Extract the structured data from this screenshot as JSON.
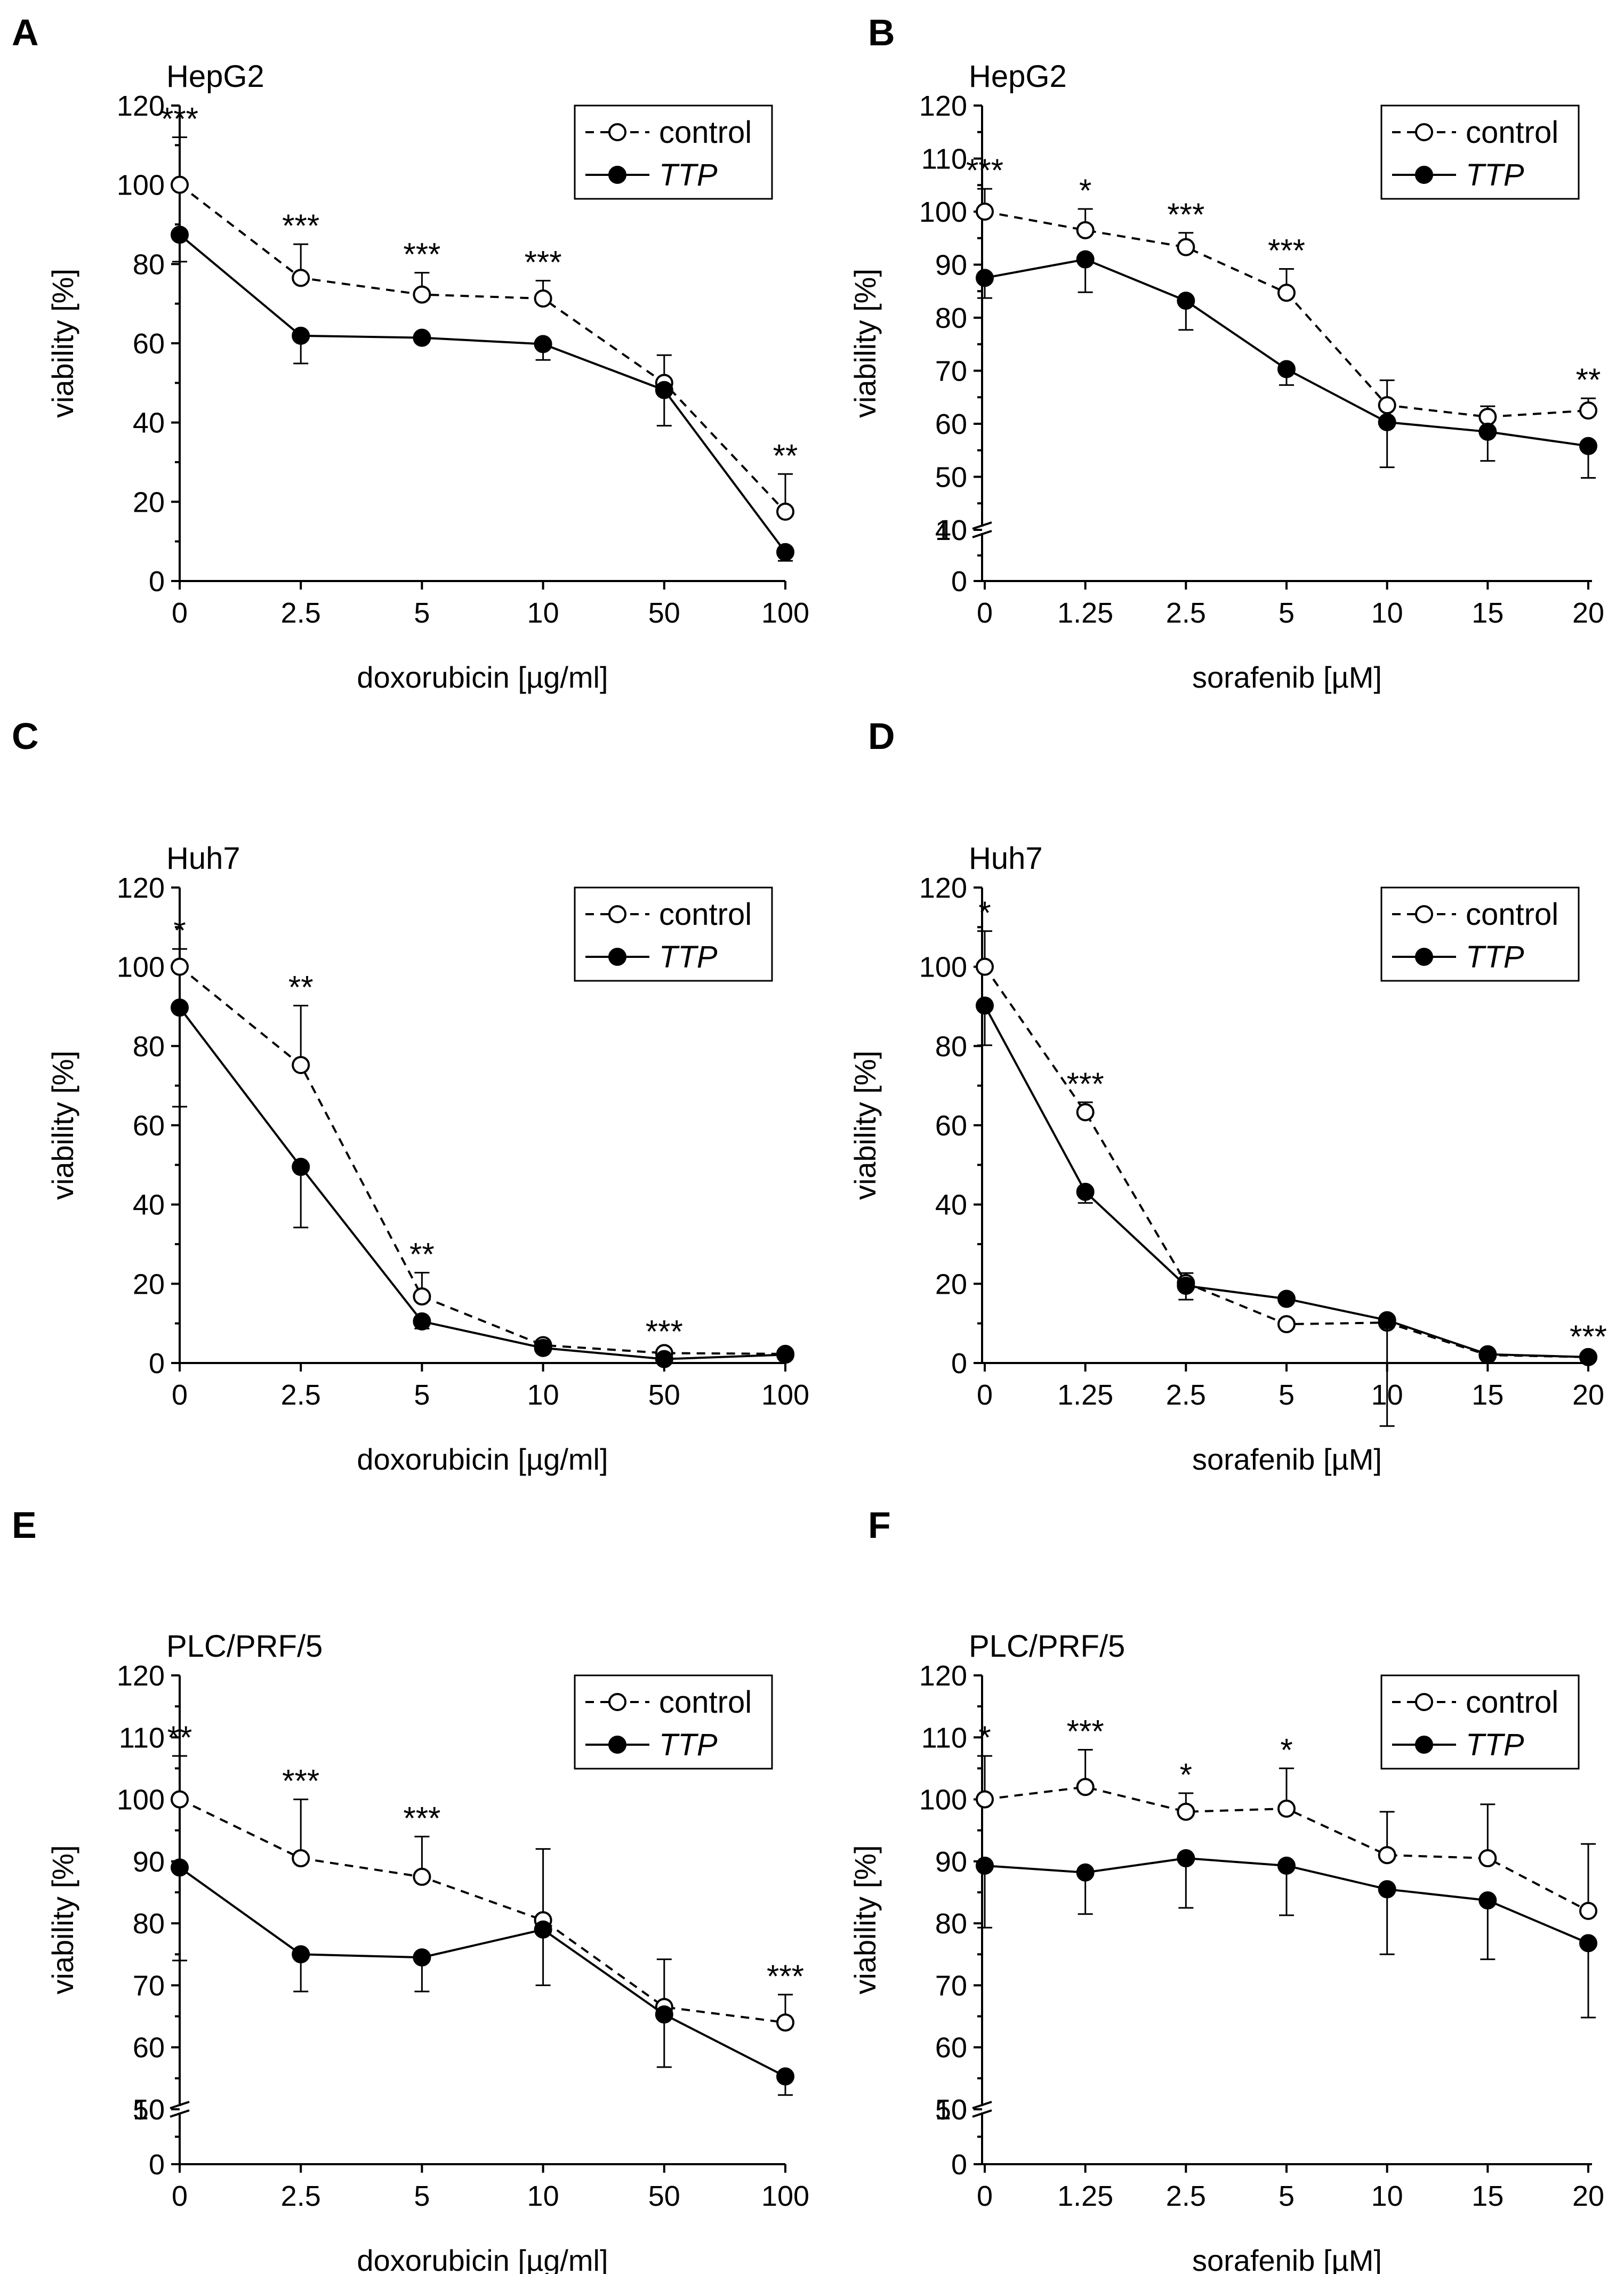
{
  "chart_data": [
    {
      "type": "line",
      "panel": "A",
      "title": "HepG2",
      "xlabel": "doxorubicin [µg/ml]",
      "ylabel": "viability [%]",
      "categories": [
        "0",
        "2.5",
        "5",
        "10",
        "50",
        "100"
      ],
      "ylim": [
        0,
        120
      ],
      "y_major_ticks": [
        0,
        20,
        40,
        60,
        80,
        100,
        120
      ],
      "y_break": null,
      "legend_position": "top-right",
      "series": [
        {
          "name": "control",
          "style": "open-dashed",
          "values": [
            100,
            76.5,
            72.3,
            71.3,
            50,
            17.5
          ],
          "errors": [
            12,
            8.5,
            5.5,
            4.5,
            7,
            9.5
          ]
        },
        {
          "name": "TTP",
          "style": "filled-solid",
          "values": [
            87.4,
            61.9,
            61.4,
            59.8,
            48.2,
            7.3
          ],
          "errors": [
            6.8,
            7,
            1.2,
            4,
            9,
            2.2
          ]
        }
      ],
      "significance": [
        {
          "index": 0,
          "label": "***",
          "at": 112
        },
        {
          "index": 1,
          "label": "***",
          "at": 85
        },
        {
          "index": 2,
          "label": "***",
          "at": 77.8
        },
        {
          "index": 3,
          "label": "***",
          "at": 75.8
        },
        {
          "index": 5,
          "label": "**",
          "at": 27
        }
      ]
    },
    {
      "type": "line",
      "panel": "B",
      "title": "HepG2",
      "xlabel": "sorafenib [µM]",
      "ylabel": "viability [%]",
      "categories": [
        "0",
        "1.25",
        "2.5",
        "5",
        "10",
        "15",
        "20"
      ],
      "ylim": [
        0,
        120
      ],
      "y_major_ticks": [
        0,
        10,
        40,
        50,
        60,
        70,
        80,
        90,
        100,
        110,
        120
      ],
      "y_break": [
        10,
        40
      ],
      "legend_position": "top-right",
      "series": [
        {
          "name": "control",
          "style": "open-dashed",
          "values": [
            100,
            96.5,
            93.3,
            84.7,
            63.5,
            61.3,
            62.5
          ],
          "errors": [
            4.3,
            4,
            2.7,
            4.5,
            4.7,
            2,
            2.3
          ]
        },
        {
          "name": "TTP",
          "style": "filled-solid",
          "values": [
            87.5,
            91,
            83.2,
            70.3,
            60.3,
            58.5,
            55.8
          ],
          "errors": [
            3.8,
            6.2,
            5.5,
            3,
            8.5,
            5.5,
            6
          ]
        }
      ],
      "significance": [
        {
          "index": 0,
          "label": "***",
          "at": 104.3
        },
        {
          "index": 1,
          "label": "*",
          "at": 100.5
        },
        {
          "index": 2,
          "label": "***",
          "at": 96
        },
        {
          "index": 3,
          "label": "***",
          "at": 89.2
        },
        {
          "index": 6,
          "label": "**",
          "at": 64.8
        }
      ]
    },
    {
      "type": "line",
      "panel": "C",
      "title": "Huh7",
      "xlabel": "doxorubicin [µg/ml]",
      "ylabel": "viability [%]",
      "categories": [
        "0",
        "2.5",
        "5",
        "10",
        "50",
        "100"
      ],
      "ylim": [
        0,
        120
      ],
      "y_major_ticks": [
        0,
        20,
        40,
        60,
        80,
        100,
        120
      ],
      "y_break": null,
      "legend_position": "top-right",
      "series": [
        {
          "name": "control",
          "style": "open-dashed",
          "values": [
            100,
            75.2,
            16.8,
            4.5,
            2.5,
            2.3
          ],
          "errors": [
            4.5,
            15,
            6,
            1.2,
            0.8,
            0.6
          ]
        },
        {
          "name": "TTP",
          "style": "filled-solid",
          "values": [
            89.7,
            49.5,
            10.5,
            3.8,
            1,
            2.1
          ],
          "errors": [
            25,
            15.3,
            1.8,
            1,
            0.5,
            0.6
          ]
        }
      ],
      "significance": [
        {
          "index": 0,
          "label": "*",
          "at": 104.5
        },
        {
          "index": 1,
          "label": "**",
          "at": 90.2
        },
        {
          "index": 2,
          "label": "**",
          "at": 22.8
        },
        {
          "index": 4,
          "label": "***",
          "at": 3.3
        }
      ]
    },
    {
      "type": "line",
      "panel": "D",
      "title": "Huh7",
      "xlabel": "sorafenib [µM]",
      "ylabel": "viability [%]",
      "categories": [
        "0",
        "1.25",
        "2.5",
        "5",
        "10",
        "15",
        "20"
      ],
      "ylim": [
        0,
        120
      ],
      "y_major_ticks": [
        0,
        20,
        40,
        60,
        80,
        100,
        120
      ],
      "y_break": null,
      "legend_position": "top-right",
      "series": [
        {
          "name": "control",
          "style": "open-dashed",
          "values": [
            100,
            63.3,
            20.2,
            9.8,
            10.2,
            2,
            1.5
          ],
          "errors": [
            9,
            2.5,
            2.5,
            0,
            0,
            0.5,
            0.5
          ]
        },
        {
          "name": "TTP",
          "style": "filled-solid",
          "values": [
            90.2,
            43.2,
            19.5,
            16.2,
            10.8,
            2.2,
            1.5
          ],
          "errors": [
            10,
            2.8,
            3.5,
            0,
            26.7,
            0.5,
            0.5
          ]
        }
      ],
      "significance": [
        {
          "index": 0,
          "label": "*",
          "at": 109
        },
        {
          "index": 1,
          "label": "***",
          "at": 65.8
        },
        {
          "index": 6,
          "label": "***",
          "at": 2
        }
      ]
    },
    {
      "type": "line",
      "panel": "E",
      "title": "PLC/PRF/5",
      "xlabel": "doxorubicin [µg/ml]",
      "ylabel": "viability [%]",
      "categories": [
        "0",
        "2.5",
        "5",
        "10",
        "50",
        "100"
      ],
      "ylim": [
        0,
        120
      ],
      "y_major_ticks": [
        0,
        10,
        50,
        60,
        70,
        80,
        90,
        100,
        110,
        120
      ],
      "y_break": [
        10,
        50
      ],
      "legend_position": "top-right",
      "series": [
        {
          "name": "control",
          "style": "open-dashed",
          "values": [
            100,
            90.5,
            87.5,
            80.5,
            66.5,
            64
          ],
          "errors": [
            7,
            9.5,
            6.5,
            11.5,
            7.7,
            4.5
          ]
        },
        {
          "name": "TTP",
          "style": "filled-solid",
          "values": [
            89,
            75,
            74.5,
            79,
            65.3,
            55.3
          ],
          "errors": [
            15,
            6,
            5.5,
            9,
            8.5,
            3
          ]
        }
      ],
      "significance": [
        {
          "index": 0,
          "label": "**",
          "at": 107
        },
        {
          "index": 1,
          "label": "***",
          "at": 100
        },
        {
          "index": 2,
          "label": "***",
          "at": 94
        },
        {
          "index": 5,
          "label": "***",
          "at": 68.5
        }
      ]
    },
    {
      "type": "line",
      "panel": "F",
      "title": "PLC/PRF/5",
      "xlabel": "sorafenib [µM]",
      "ylabel": "viability [%]",
      "categories": [
        "0",
        "1.25",
        "2.5",
        "5",
        "10",
        "15",
        "20"
      ],
      "ylim": [
        0,
        120
      ],
      "y_major_ticks": [
        0,
        10,
        50,
        60,
        70,
        80,
        90,
        100,
        110,
        120
      ],
      "y_break": [
        10,
        50
      ],
      "legend_position": "top-right",
      "series": [
        {
          "name": "control",
          "style": "open-dashed",
          "values": [
            100,
            102,
            98,
            98.5,
            91,
            90.5,
            82
          ],
          "errors": [
            7,
            6,
            3,
            6.5,
            7,
            8.7,
            10.8
          ]
        },
        {
          "name": "TTP",
          "style": "filled-solid",
          "values": [
            89.3,
            88.2,
            90.5,
            89.3,
            85.5,
            83.7,
            76.8
          ],
          "errors": [
            10,
            6.7,
            8,
            8,
            10.5,
            9.5,
            12
          ]
        }
      ],
      "significance": [
        {
          "index": 0,
          "label": "*",
          "at": 107
        },
        {
          "index": 1,
          "label": "***",
          "at": 108
        },
        {
          "index": 2,
          "label": "*",
          "at": 101
        },
        {
          "index": 3,
          "label": "*",
          "at": 105
        }
      ]
    }
  ]
}
